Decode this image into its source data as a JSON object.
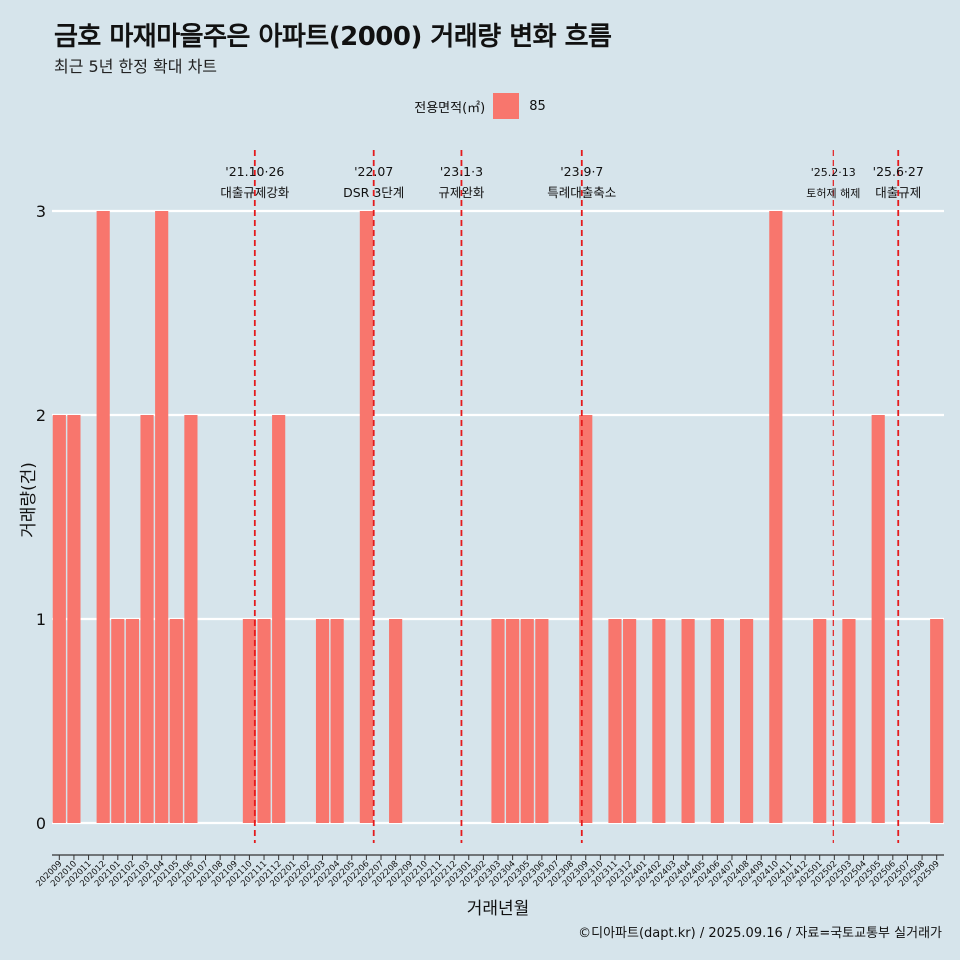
{
  "title": "금호 마재마을주은 아파트(2000) 거래량 변화 흐름",
  "subtitle": "최근 5년 한정 확대 차트",
  "caption": "©디아파트(dapt.kr) / 2025.09.16 / 자료=국토교통부 실거래가",
  "colors": {
    "background": "#d6e4eb",
    "bar": "#f8766d",
    "annotation_line": "#e41a1c"
  },
  "chart_data": {
    "type": "bar",
    "xlabel": "거래년월",
    "ylabel": "거래량(건)",
    "legend_title": "전용면적(㎡)",
    "legend_position": "top",
    "ylim": [
      0,
      3
    ],
    "yticks": [
      0,
      1,
      2,
      3
    ],
    "grid": true,
    "categories": [
      "202009",
      "202010",
      "202011",
      "202012",
      "202101",
      "202102",
      "202103",
      "202104",
      "202105",
      "202106",
      "202107",
      "202108",
      "202109",
      "202110",
      "202111",
      "202112",
      "202201",
      "202202",
      "202203",
      "202204",
      "202205",
      "202206",
      "202207",
      "202208",
      "202209",
      "202210",
      "202211",
      "202212",
      "202301",
      "202302",
      "202303",
      "202304",
      "202305",
      "202306",
      "202307",
      "202308",
      "202309",
      "202310",
      "202311",
      "202312",
      "202401",
      "202402",
      "202403",
      "202404",
      "202405",
      "202406",
      "202407",
      "202408",
      "202409",
      "202410",
      "202411",
      "202412",
      "202501",
      "202502",
      "202503",
      "202504",
      "202505",
      "202506",
      "202507",
      "202508",
      "202509"
    ],
    "series": [
      {
        "name": "85",
        "values": [
          2,
          2,
          0,
          3,
          1,
          1,
          2,
          3,
          1,
          2,
          0,
          0,
          0,
          1,
          1,
          2,
          0,
          0,
          1,
          1,
          0,
          3,
          0,
          1,
          0,
          0,
          0,
          0,
          0,
          0,
          1,
          1,
          1,
          1,
          0,
          0,
          2,
          0,
          1,
          1,
          0,
          1,
          0,
          1,
          0,
          1,
          0,
          1,
          0,
          3,
          0,
          0,
          1,
          0,
          1,
          0,
          2,
          0,
          0,
          0,
          1
        ]
      }
    ],
    "annotations": [
      {
        "date": "202110.87",
        "line1": "'21.10·26",
        "line2": "대출규제강화",
        "style": "dashed"
      },
      {
        "date": "202207",
        "line1": "'22.07",
        "line2": "DSR 3단계",
        "style": "dashed"
      },
      {
        "date": "202301",
        "line1": "'23.1·3",
        "line2": "규제완화",
        "style": "dashed"
      },
      {
        "date": "202309.23",
        "line1": "'23.9·7",
        "line2": "특례대출축소",
        "style": "dashed"
      },
      {
        "date": "202502.43",
        "line1": "'25.2·13",
        "line2": "토허제 해제",
        "style": "dashed-thin"
      },
      {
        "date": "202506.87",
        "line1": "'25.6·27",
        "line2": "대출규제",
        "style": "dashed"
      }
    ]
  }
}
